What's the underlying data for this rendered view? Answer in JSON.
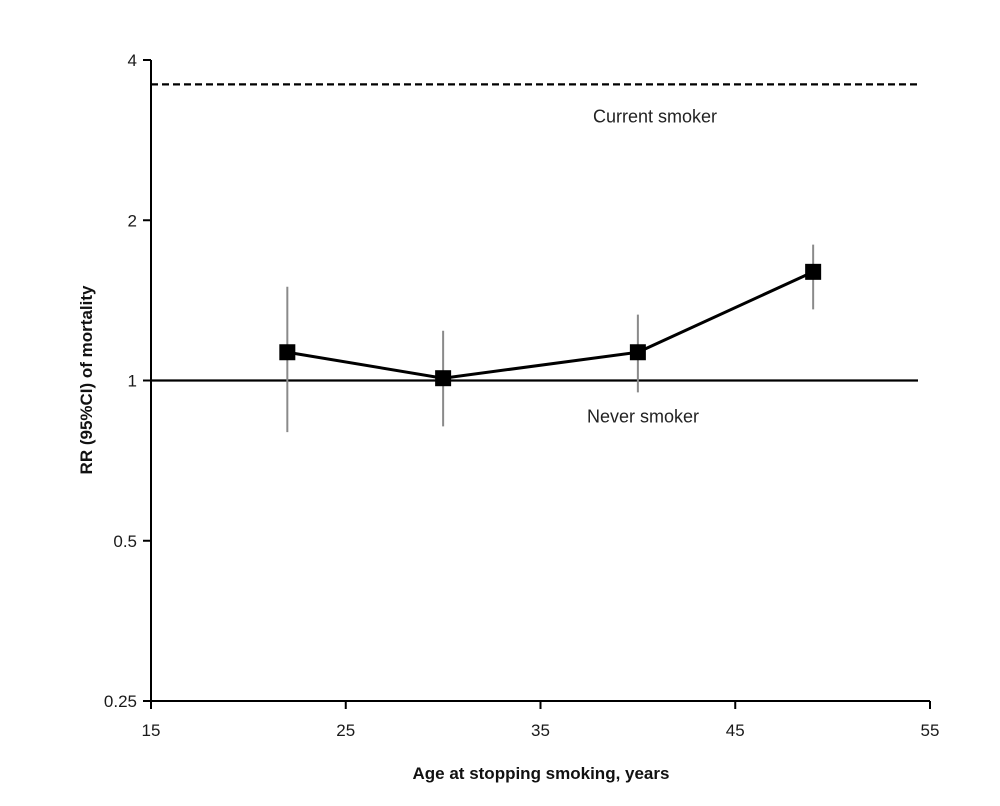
{
  "chart_data": {
    "type": "line",
    "xlabel": "Age at stopping smoking, years",
    "ylabel": "RR (95%CI) of mortality",
    "xlim": [
      15,
      55
    ],
    "ylim": [
      0.25,
      4
    ],
    "yscale": "log2",
    "x_ticks": [
      15,
      25,
      35,
      45,
      55
    ],
    "x_tick_labels": [
      "15",
      "25",
      "35",
      "45",
      "55"
    ],
    "y_ticks": [
      0.25,
      0.5,
      1,
      2,
      4
    ],
    "y_tick_labels": [
      "0.25",
      "0.5",
      "1",
      "2",
      "4"
    ],
    "series": [
      {
        "x": [
          22,
          30,
          40,
          49
        ],
        "y": [
          1.13,
          1.01,
          1.13,
          1.6
        ],
        "ci_low": [
          0.8,
          0.82,
          0.95,
          1.36
        ],
        "ci_high": [
          1.5,
          1.24,
          1.33,
          1.8
        ],
        "marker": "square",
        "color": "#000000"
      }
    ],
    "reference_lines": [
      {
        "label": "Current smoker",
        "y": 3.6,
        "style": "dashed",
        "color": "#000000"
      },
      {
        "label": "Never smoker",
        "y": 1.0,
        "style": "solid",
        "color": "#000000"
      }
    ],
    "grid": false,
    "legend": "none"
  }
}
